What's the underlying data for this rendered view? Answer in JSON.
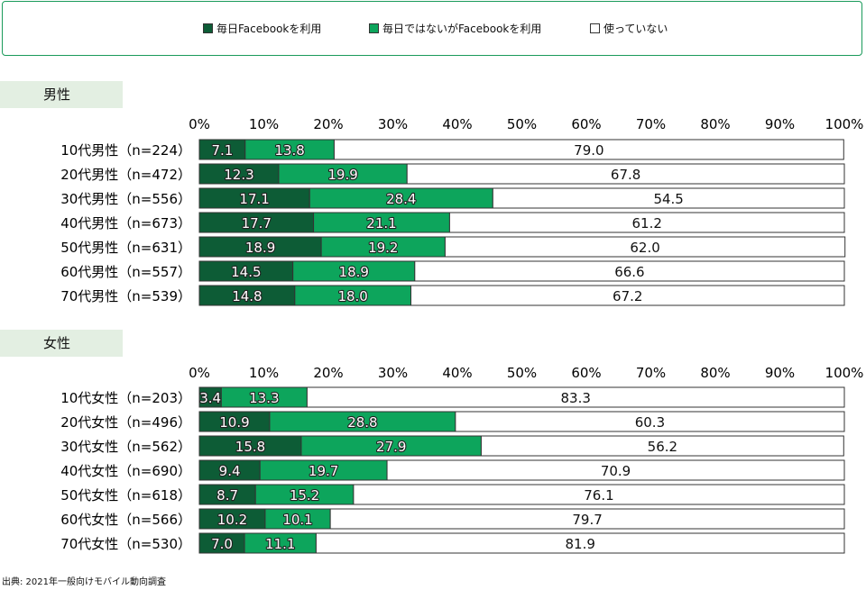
{
  "legend": {
    "items": [
      {
        "label": "毎日Facebookを利用",
        "color": "#0d5c36"
      },
      {
        "label": "毎日ではないがFacebookを利用",
        "color": "#0da55c"
      },
      {
        "label": "使っていない",
        "color": "#ffffff"
      }
    ]
  },
  "source": "出典: 2021年一般向けモバイル動向調査",
  "chart_data": [
    {
      "type": "bar",
      "orientation": "horizontal",
      "stacked": true,
      "panel_label": "男性",
      "xlim": [
        0,
        100
      ],
      "x_ticks": [
        "0%",
        "10%",
        "20%",
        "30%",
        "40%",
        "50%",
        "60%",
        "70%",
        "80%",
        "90%",
        "100%"
      ],
      "categories": [
        "10代男性（n=224）",
        "20代男性（n=472）",
        "30代男性（n=556）",
        "40代男性（n=673）",
        "50代男性（n=631）",
        "60代男性（n=557）",
        "70代男性（n=539）"
      ],
      "series": [
        {
          "name": "毎日Facebookを利用",
          "values": [
            7.1,
            12.3,
            17.1,
            17.7,
            18.9,
            14.5,
            14.8
          ]
        },
        {
          "name": "毎日ではないがFacebookを利用",
          "values": [
            13.8,
            19.9,
            28.4,
            21.1,
            19.2,
            18.9,
            18.0
          ]
        },
        {
          "name": "使っていない",
          "values": [
            79.0,
            67.8,
            54.5,
            61.2,
            62.0,
            66.6,
            67.2
          ]
        }
      ],
      "data_labels": [
        [
          "7.1",
          "12.3",
          "17.1",
          "17.7",
          "18.9",
          "14.5",
          "14.8"
        ],
        [
          "13.8",
          "19.9",
          "28.4",
          "21.1",
          "19.2",
          "18.9",
          "18.0"
        ],
        [
          "79.0",
          "67.8",
          "54.5",
          "61.2",
          "62.0",
          "66.6",
          "67.2"
        ]
      ]
    },
    {
      "type": "bar",
      "orientation": "horizontal",
      "stacked": true,
      "panel_label": "女性",
      "xlim": [
        0,
        100
      ],
      "x_ticks": [
        "0%",
        "10%",
        "20%",
        "30%",
        "40%",
        "50%",
        "60%",
        "70%",
        "80%",
        "90%",
        "100%"
      ],
      "categories": [
        "10代女性（n=203）",
        "20代女性（n=496）",
        "30代女性（n=562）",
        "40代女性（n=690）",
        "50代女性（n=618）",
        "60代女性（n=566）",
        "70代女性（n=530）"
      ],
      "series": [
        {
          "name": "毎日Facebookを利用",
          "values": [
            3.4,
            10.9,
            15.8,
            9.4,
            8.7,
            10.2,
            7.0
          ]
        },
        {
          "name": "毎日ではないがFacebookを利用",
          "values": [
            13.3,
            28.8,
            27.9,
            19.7,
            15.2,
            10.1,
            11.1
          ]
        },
        {
          "name": "使っていない",
          "values": [
            83.3,
            60.3,
            56.2,
            70.9,
            76.1,
            79.7,
            81.9
          ]
        }
      ],
      "data_labels": [
        [
          "3.4",
          "10.9",
          "15.8",
          "9.4",
          "8.7",
          "10.2",
          "7.0"
        ],
        [
          "13.3",
          "28.8",
          "27.9",
          "19.7",
          "15.2",
          "10.1",
          "11.1"
        ],
        [
          "83.3",
          "60.3",
          "56.2",
          "70.9",
          "76.1",
          "79.7",
          "81.9"
        ]
      ]
    }
  ]
}
